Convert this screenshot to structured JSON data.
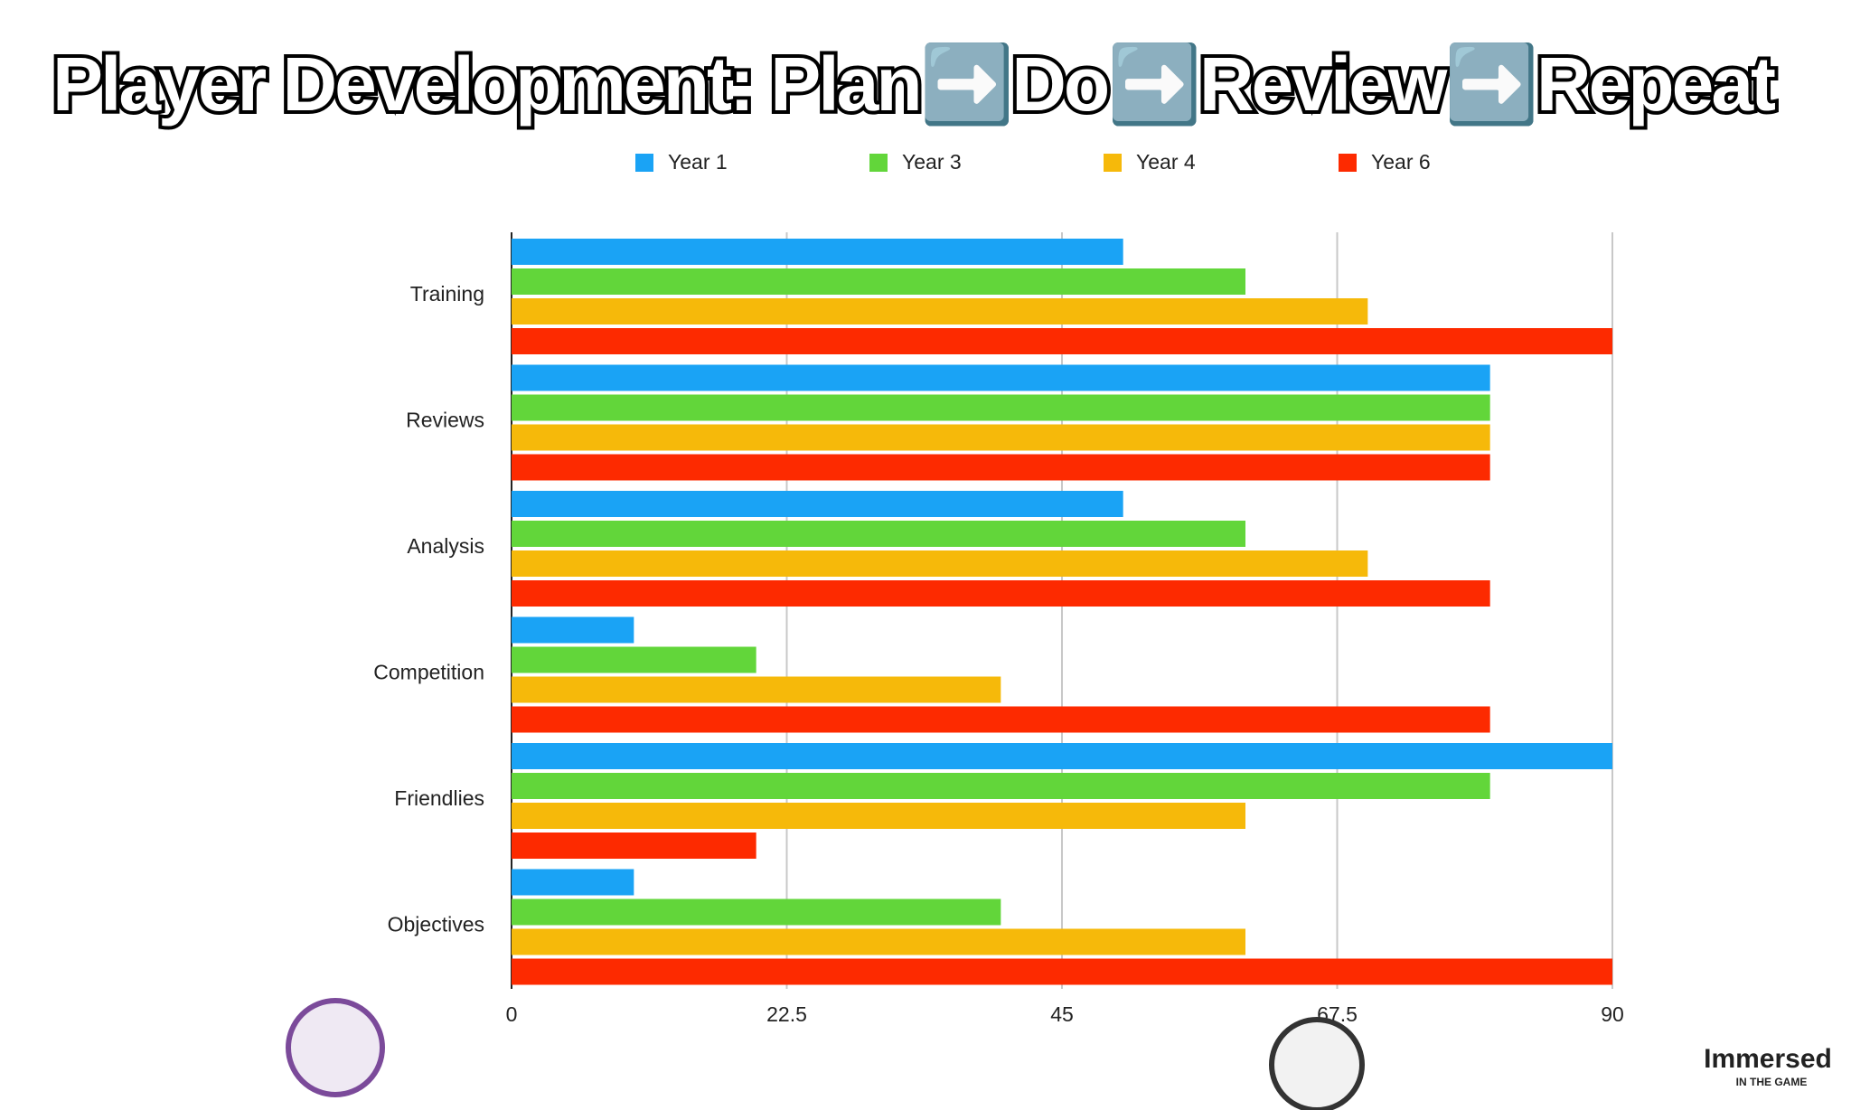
{
  "chart_data": {
    "type": "bar",
    "orientation": "horizontal",
    "title": "Player Development: Plan➡️Do➡️Review➡️Repeat",
    "categories": [
      "Training",
      "Reviews",
      "Analysis",
      "Competition",
      "Friendlies",
      "Objectives"
    ],
    "series": [
      {
        "name": "Year 1",
        "color": "#1aa3f5",
        "values": [
          50,
          80,
          50,
          10,
          90,
          10
        ]
      },
      {
        "name": "Year 3",
        "color": "#62d63a",
        "values": [
          60,
          80,
          60,
          20,
          80,
          40
        ]
      },
      {
        "name": "Year 4",
        "color": "#f6b90a",
        "values": [
          70,
          80,
          70,
          40,
          60,
          60
        ]
      },
      {
        "name": "Year 6",
        "color": "#fd2a00",
        "values": [
          90,
          80,
          80,
          80,
          20,
          90
        ]
      }
    ],
    "xlim": [
      0,
      90
    ],
    "xticks": [
      0,
      22.5,
      45,
      67.5,
      90
    ],
    "grid": true,
    "legend": "top"
  },
  "logo": {
    "name": "Immersed",
    "tagline": "IN THE GAME"
  }
}
